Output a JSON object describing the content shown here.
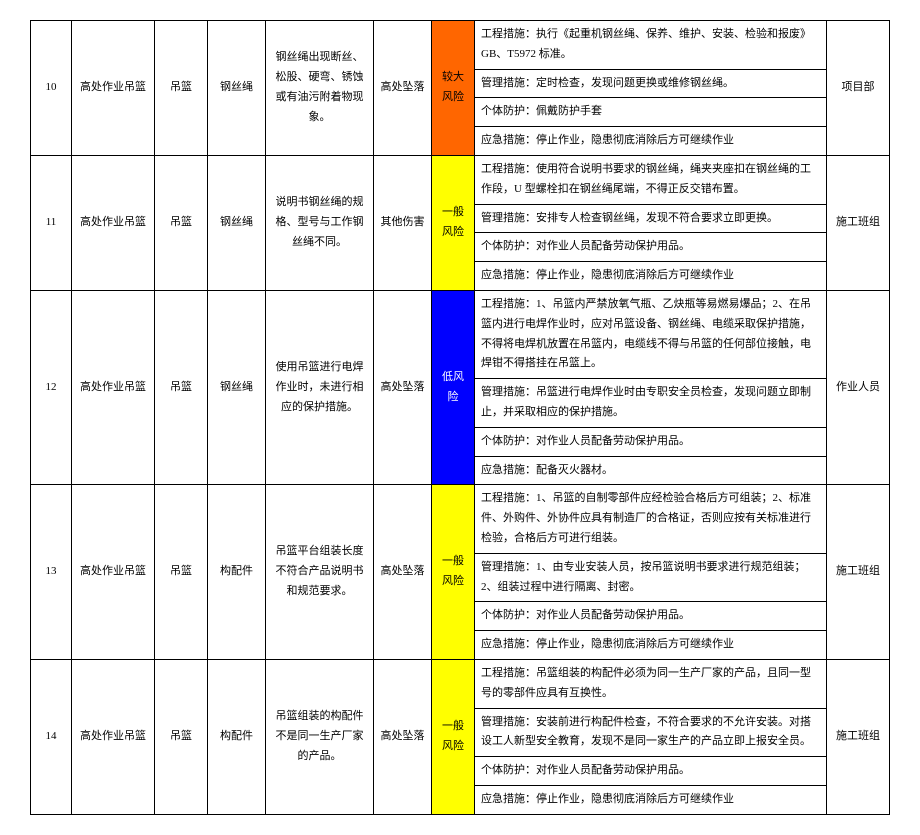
{
  "rows": [
    {
      "num": "10",
      "area": "高处作业吊篮",
      "equip": "吊篮",
      "part": "钢丝绳",
      "hazard": "钢丝绳出现断丝、松股、硬弯、锈蚀或有油污附着物现象。",
      "type": "高处坠落",
      "risk_label": "较大风险",
      "risk_class": "risk-major",
      "measures": [
        "工程措施：执行《起重机钢丝绳、保养、维护、安装、检验和报废》GB、T5972 标准。",
        "管理措施：定时检查，发现问题更换或维修钢丝绳。",
        "个体防护：佩戴防护手套",
        "应急措施：停止作业，隐患彻底消除后方可继续作业"
      ],
      "resp": "项目部"
    },
    {
      "num": "11",
      "area": "高处作业吊篮",
      "equip": "吊篮",
      "part": "钢丝绳",
      "hazard": "说明书钢丝绳的规格、型号与工作钢丝绳不同。",
      "type": "其他伤害",
      "risk_label": "一般风险",
      "risk_class": "risk-general",
      "measures": [
        "工程措施：使用符合说明书要求的钢丝绳，绳夹夹座扣在钢丝绳的工作段，U 型螺栓扣在钢丝绳尾端，不得正反交错布置。",
        "管理措施：安排专人检查钢丝绳，发现不符合要求立即更换。",
        "个体防护：对作业人员配备劳动保护用品。",
        "应急措施：停止作业，隐患彻底消除后方可继续作业"
      ],
      "resp": "施工班组"
    },
    {
      "num": "12",
      "area": "高处作业吊篮",
      "equip": "吊篮",
      "part": "钢丝绳",
      "hazard": "使用吊篮进行电焊作业时，未进行相应的保护措施。",
      "type": "高处坠落",
      "risk_label": "低风险",
      "risk_class": "risk-low",
      "measures": [
        "工程措施：1、吊篮内严禁放氧气瓶、乙炔瓶等易燃易爆品；2、在吊篮内进行电焊作业时，应对吊篮设备、钢丝绳、电缆采取保护措施，不得将电焊机放置在吊篮内，电缆线不得与吊篮的任何部位接触，电焊钳不得搭挂在吊篮上。",
        "管理措施：吊篮进行电焊作业时由专职安全员检查，发现问题立即制止，并采取相应的保护措施。",
        "个体防护：对作业人员配备劳动保护用品。",
        "应急措施：配备灭火器材。"
      ],
      "resp": "作业人员"
    },
    {
      "num": "13",
      "area": "高处作业吊篮",
      "equip": "吊篮",
      "part": "构配件",
      "hazard": "吊篮平台组装长度不符合产品说明书和规范要求。",
      "type": "高处坠落",
      "risk_label": "一般风险",
      "risk_class": "risk-general",
      "measures": [
        "工程措施：1、吊篮的自制零部件应经检验合格后方可组装；2、标准件、外购件、外协件应具有制造厂的合格证，否则应按有关标准进行检验，合格后方可进行组装。",
        "管理措施：1、由专业安装人员，按吊篮说明书要求进行规范组装；2、组装过程中进行隔离、封密。",
        "个体防护：对作业人员配备劳动保护用品。",
        "应急措施：停止作业，隐患彻底消除后方可继续作业"
      ],
      "resp": "施工班组"
    },
    {
      "num": "14",
      "area": "高处作业吊篮",
      "equip": "吊篮",
      "part": "构配件",
      "hazard": "吊篮组装的构配件不是同一生产厂家的产品。",
      "type": "高处坠落",
      "risk_label": "一般风险",
      "risk_class": "risk-general",
      "measures": [
        "工程措施：吊篮组装的构配件必须为同一生产厂家的产品，且同一型号的零部件应具有互换性。",
        "管理措施：安装前进行构配件检查，不符合要求的不允许安装。对搭设工人新型安全教育，发现不是同一家生产的产品立即上报安全员。",
        "个体防护：对作业人员配备劳动保护用品。",
        "应急措施：停止作业，隐患彻底消除后方可继续作业"
      ],
      "resp": "施工班组"
    }
  ]
}
